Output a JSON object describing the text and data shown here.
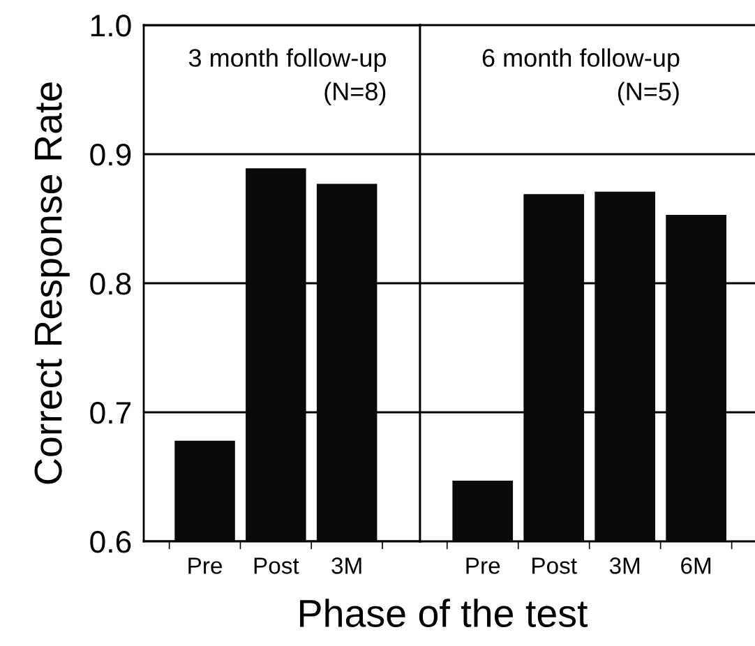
{
  "chart_data": [
    {
      "type": "bar",
      "xlabel": "Phase of the test",
      "ylabel": "Correct Response Rate",
      "categories": [
        "Pre",
        "Post",
        "3M"
      ],
      "values": [
        0.678,
        0.889,
        0.877
      ],
      "color": "#0a0a0a",
      "ylim": [
        0.6,
        1.0
      ],
      "yticks": [
        {
          "value": 0.6,
          "label": "0.6"
        },
        {
          "value": 0.7,
          "label": "0.7"
        },
        {
          "value": 0.8,
          "label": "0.8"
        },
        {
          "value": 0.9,
          "label": "0.9"
        },
        {
          "value": 1.0,
          "label": "1.0"
        }
      ],
      "grid": "y",
      "annotations": [
        "3 month follow-up",
        "(N=8)"
      ]
    },
    {
      "type": "bar",
      "categories": [
        "Pre",
        "Post",
        "3M",
        "6M"
      ],
      "values": [
        0.647,
        0.869,
        0.871,
        0.853
      ],
      "color": "#0a0a0a",
      "ylim": [
        0.6,
        1.0
      ],
      "yticks": [
        {
          "value": 0.7,
          "label": null
        },
        {
          "value": 0.8,
          "label": null
        },
        {
          "value": 0.9,
          "label": null
        }
      ],
      "grid": "y",
      "tick_labels": "x",
      "annotations": [
        "6 month follow-up",
        "(N=5)"
      ]
    }
  ]
}
